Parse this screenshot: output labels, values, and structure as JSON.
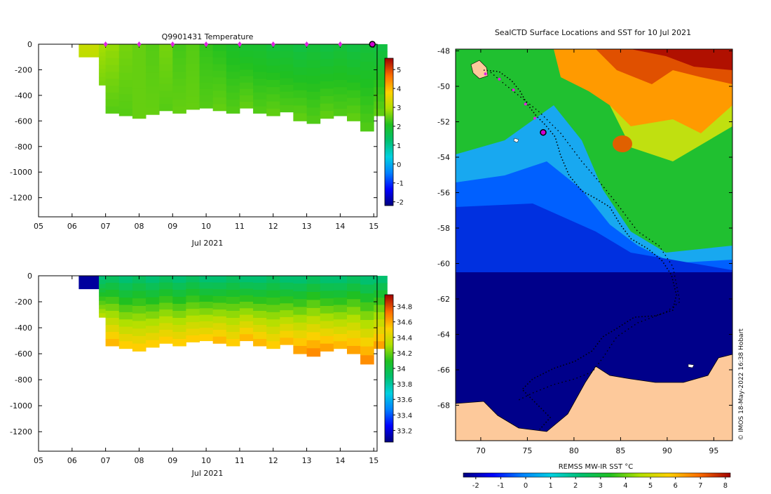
{
  "chart_data": [
    {
      "type": "heatmap",
      "title": "Q9901431  Temperature",
      "xlabel": "Jul 2021",
      "ylabel": "",
      "x_ticks": [
        "05",
        "06",
        "07",
        "08",
        "09",
        "10",
        "11",
        "12",
        "13",
        "14",
        "15"
      ],
      "y_ticks": [
        "0",
        "-200",
        "-400",
        "-600",
        "-800",
        "-1000",
        "-1200"
      ],
      "ylim": [
        -1350,
        0
      ],
      "xlim": [
        5,
        15.1
      ],
      "colorbar": {
        "min": -2.2,
        "max": 5.6,
        "ticks": [
          "5",
          "4",
          "3",
          "2",
          "1",
          "0",
          "-1",
          "-2"
        ]
      },
      "profile_markers_days": [
        7,
        8,
        9,
        10,
        11,
        12,
        13,
        14,
        15
      ],
      "profiles": [
        {
          "day": 6.2,
          "depth": 100,
          "top": 3.2,
          "bottom": 3.1
        },
        {
          "day": 6.8,
          "depth": 320,
          "top": 2.9,
          "bottom": 2.6
        },
        {
          "day": 7.0,
          "depth": 540,
          "top": 2.8,
          "bottom": 2.4
        },
        {
          "day": 7.4,
          "depth": 560,
          "top": 2.6,
          "bottom": 2.4
        },
        {
          "day": 7.8,
          "depth": 580,
          "top": 2.5,
          "bottom": 2.5
        },
        {
          "day": 8.2,
          "depth": 550,
          "top": 2.4,
          "bottom": 2.5
        },
        {
          "day": 8.6,
          "depth": 520,
          "top": 2.6,
          "bottom": 2.4
        },
        {
          "day": 9.0,
          "depth": 540,
          "top": 2.3,
          "bottom": 2.5
        },
        {
          "day": 9.4,
          "depth": 510,
          "top": 2.4,
          "bottom": 2.5
        },
        {
          "day": 9.8,
          "depth": 500,
          "top": 2.2,
          "bottom": 2.4
        },
        {
          "day": 10.2,
          "depth": 520,
          "top": 2.1,
          "bottom": 2.5
        },
        {
          "day": 10.6,
          "depth": 540,
          "top": 2.0,
          "bottom": 2.4
        },
        {
          "day": 11.0,
          "depth": 500,
          "top": 1.9,
          "bottom": 2.5
        },
        {
          "day": 11.4,
          "depth": 540,
          "top": 1.9,
          "bottom": 2.4
        },
        {
          "day": 11.8,
          "depth": 560,
          "top": 1.8,
          "bottom": 2.5
        },
        {
          "day": 12.2,
          "depth": 530,
          "top": 1.8,
          "bottom": 2.4
        },
        {
          "day": 12.6,
          "depth": 600,
          "top": 1.7,
          "bottom": 2.5
        },
        {
          "day": 13.0,
          "depth": 620,
          "top": 1.8,
          "bottom": 2.4
        },
        {
          "day": 13.4,
          "depth": 580,
          "top": 1.7,
          "bottom": 2.5
        },
        {
          "day": 13.8,
          "depth": 560,
          "top": 1.8,
          "bottom": 2.4
        },
        {
          "day": 14.2,
          "depth": 600,
          "top": 1.7,
          "bottom": 2.5
        },
        {
          "day": 14.6,
          "depth": 680,
          "top": 1.8,
          "bottom": 2.4
        },
        {
          "day": 15.0,
          "depth": 560,
          "top": 1.7,
          "bottom": 2.5
        }
      ]
    },
    {
      "type": "heatmap",
      "title": "",
      "xlabel": "Jul 2021",
      "ylabel": "",
      "x_ticks": [
        "05",
        "06",
        "07",
        "08",
        "09",
        "10",
        "11",
        "12",
        "13",
        "14",
        "15"
      ],
      "y_ticks": [
        "0",
        "-200",
        "-400",
        "-600",
        "-800",
        "-1000",
        "-1200"
      ],
      "ylim": [
        -1350,
        0
      ],
      "xlim": [
        5,
        15.1
      ],
      "colorbar": {
        "min": 33.05,
        "max": 34.95,
        "ticks": [
          "34.8",
          "34.6",
          "34.4",
          "34.2",
          "34",
          "33.8",
          "33.6",
          "33.4",
          "33.2"
        ]
      },
      "profiles": [
        {
          "day": 6.2,
          "depth": 100,
          "top": 33.1,
          "bottom": 33.1
        },
        {
          "day": 6.8,
          "depth": 320,
          "top": 33.85,
          "bottom": 34.35
        },
        {
          "day": 7.0,
          "depth": 540,
          "top": 33.9,
          "bottom": 34.6
        },
        {
          "day": 7.4,
          "depth": 560,
          "top": 33.85,
          "bottom": 34.55
        },
        {
          "day": 7.8,
          "depth": 580,
          "top": 33.9,
          "bottom": 34.55
        },
        {
          "day": 8.2,
          "depth": 550,
          "top": 33.85,
          "bottom": 34.55
        },
        {
          "day": 8.6,
          "depth": 520,
          "top": 33.9,
          "bottom": 34.55
        },
        {
          "day": 9.0,
          "depth": 540,
          "top": 33.85,
          "bottom": 34.55
        },
        {
          "day": 9.4,
          "depth": 510,
          "top": 33.9,
          "bottom": 34.55
        },
        {
          "day": 9.8,
          "depth": 500,
          "top": 33.85,
          "bottom": 34.55
        },
        {
          "day": 10.2,
          "depth": 520,
          "top": 33.85,
          "bottom": 34.6
        },
        {
          "day": 10.6,
          "depth": 540,
          "top": 33.9,
          "bottom": 34.55
        },
        {
          "day": 11.0,
          "depth": 500,
          "top": 33.85,
          "bottom": 34.6
        },
        {
          "day": 11.4,
          "depth": 540,
          "top": 33.85,
          "bottom": 34.6
        },
        {
          "day": 11.8,
          "depth": 560,
          "top": 33.9,
          "bottom": 34.55
        },
        {
          "day": 12.2,
          "depth": 530,
          "top": 33.85,
          "bottom": 34.6
        },
        {
          "day": 12.6,
          "depth": 600,
          "top": 33.85,
          "bottom": 34.65
        },
        {
          "day": 13.0,
          "depth": 620,
          "top": 33.9,
          "bottom": 34.7
        },
        {
          "day": 13.4,
          "depth": 580,
          "top": 33.85,
          "bottom": 34.65
        },
        {
          "day": 13.8,
          "depth": 560,
          "top": 33.85,
          "bottom": 34.6
        },
        {
          "day": 14.2,
          "depth": 600,
          "top": 33.9,
          "bottom": 34.65
        },
        {
          "day": 14.6,
          "depth": 680,
          "top": 33.85,
          "bottom": 34.7
        },
        {
          "day": 15.0,
          "depth": 560,
          "top": 33.85,
          "bottom": 34.65
        }
      ]
    },
    {
      "type": "heatmap",
      "title": "SealCTD Surface Locations and SST for 10 Jul 2021",
      "xlabel": "",
      "ylabel": "",
      "x_ticks": [
        "70",
        "75",
        "80",
        "85",
        "90",
        "95"
      ],
      "x_tick_values": [
        70,
        75,
        80,
        85,
        90,
        95
      ],
      "y_ticks": [
        "-48",
        "-50",
        "-52",
        "-54",
        "-56",
        "-58",
        "-60",
        "-62",
        "-64",
        "-66",
        "-68"
      ],
      "y_tick_values": [
        -48,
        -50,
        -52,
        -54,
        -56,
        -58,
        -60,
        -62,
        -64,
        -66,
        -68
      ],
      "xlim": [
        67.3,
        97
      ],
      "ylim": [
        -70,
        -47.9
      ],
      "colorbar": {
        "label": "REMSS MW-IR SST °C",
        "min": -2.5,
        "max": 8.2,
        "ticks": [
          "-2",
          "-1",
          "0",
          "1",
          "2",
          "3",
          "4",
          "5",
          "6",
          "7",
          "8"
        ],
        "tick_values": [
          -2,
          -1,
          0,
          1,
          2,
          3,
          4,
          5,
          6,
          7,
          8
        ]
      },
      "seal_current_position": {
        "lon": 76.7,
        "lat": -52.6
      },
      "credit": "© IMOS 18-May-2022 16:38 Hobart"
    }
  ]
}
